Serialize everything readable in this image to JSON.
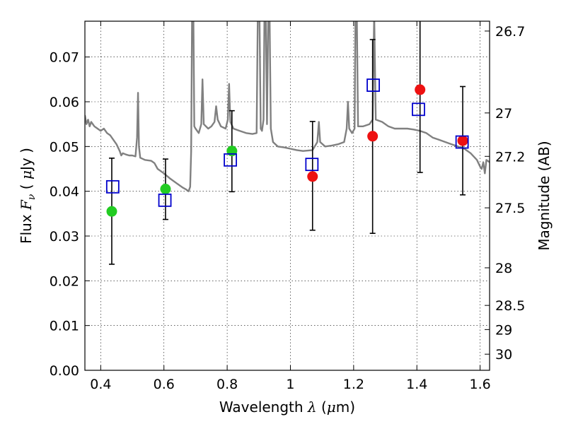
{
  "chart_data": {
    "type": "scatter",
    "xlabel": "Wavelength  λ (μm)",
    "ylabel": "Flux  Fν  ( μJy )",
    "y2label": "Magnitude (AB)",
    "xlim": [
      0.35,
      1.63
    ],
    "ylim": [
      0.0,
      0.078
    ],
    "grid": true,
    "x_ticks": [
      0.4,
      0.6,
      0.8,
      1.0,
      1.2,
      1.4,
      1.6
    ],
    "x_tick_labels": [
      "0.4",
      "0.6",
      "0.8",
      "1",
      "1.2",
      "1.4",
      "1.6"
    ],
    "y_ticks": [
      0.0,
      0.01,
      0.02,
      0.03,
      0.04,
      0.05,
      0.06,
      0.07
    ],
    "y_tick_labels": [
      "0.00",
      "0.01",
      "0.02",
      "0.03",
      "0.04",
      "0.05",
      "0.06",
      "0.07"
    ],
    "y2_ticks": [
      {
        "label": "26.7",
        "flux": 0.0758
      },
      {
        "label": "27",
        "flux": 0.0575
      },
      {
        "label": "27.2",
        "flux": 0.0478
      },
      {
        "label": "27.5",
        "flux": 0.0363
      },
      {
        "label": "28",
        "flux": 0.0229
      },
      {
        "label": "28.5",
        "flux": 0.0145
      },
      {
        "label": "29",
        "flux": 0.0091
      },
      {
        "label": "30",
        "flux": 0.0036
      }
    ],
    "series": [
      {
        "marker": "circle",
        "color": "#22cc22",
        "points": [
          {
            "x": 0.435,
            "y": 0.0355
          },
          {
            "x": 0.605,
            "y": 0.0405
          },
          {
            "x": 0.815,
            "y": 0.049
          }
        ]
      },
      {
        "marker": "circle",
        "color": "#ee1111",
        "points": [
          {
            "x": 1.07,
            "y": 0.0433
          },
          {
            "x": 1.26,
            "y": 0.0523
          },
          {
            "x": 1.41,
            "y": 0.0627
          },
          {
            "x": 1.545,
            "y": 0.0513
          }
        ]
      },
      {
        "marker": "square-open",
        "color": "#0000cc",
        "points": [
          {
            "x": 0.438,
            "y": 0.041
          },
          {
            "x": 0.603,
            "y": 0.038
          },
          {
            "x": 0.81,
            "y": 0.047
          },
          {
            "x": 1.068,
            "y": 0.046
          },
          {
            "x": 1.262,
            "y": 0.0637
          },
          {
            "x": 1.405,
            "y": 0.0583
          },
          {
            "x": 1.543,
            "y": 0.051
          }
        ]
      }
    ],
    "error_bars": [
      {
        "x": 0.435,
        "low": 0.0237,
        "high": 0.0474
      },
      {
        "x": 0.605,
        "low": 0.0337,
        "high": 0.0472
      },
      {
        "x": 0.815,
        "low": 0.0399,
        "high": 0.058
      },
      {
        "x": 1.07,
        "low": 0.0313,
        "high": 0.0556
      },
      {
        "x": 1.26,
        "low": 0.0306,
        "high": 0.0739
      },
      {
        "x": 1.41,
        "low": 0.0442,
        "high": 0.079
      },
      {
        "x": 1.545,
        "low": 0.0392,
        "high": 0.0634
      }
    ],
    "spectrum": {
      "color": "#808080",
      "points": [
        [
          0.35,
          0.057
        ],
        [
          0.355,
          0.055
        ],
        [
          0.36,
          0.056
        ],
        [
          0.365,
          0.0545
        ],
        [
          0.37,
          0.0555
        ],
        [
          0.38,
          0.0545
        ],
        [
          0.39,
          0.054
        ],
        [
          0.4,
          0.0535
        ],
        [
          0.41,
          0.054
        ],
        [
          0.42,
          0.053
        ],
        [
          0.43,
          0.0525
        ],
        [
          0.44,
          0.0515
        ],
        [
          0.45,
          0.0505
        ],
        [
          0.46,
          0.049
        ],
        [
          0.465,
          0.048
        ],
        [
          0.47,
          0.0485
        ],
        [
          0.48,
          0.0482
        ],
        [
          0.49,
          0.048
        ],
        [
          0.5,
          0.048
        ],
        [
          0.51,
          0.0478
        ],
        [
          0.515,
          0.052
        ],
        [
          0.518,
          0.062
        ],
        [
          0.521,
          0.05
        ],
        [
          0.525,
          0.0475
        ],
        [
          0.54,
          0.047
        ],
        [
          0.56,
          0.0468
        ],
        [
          0.57,
          0.0463
        ],
        [
          0.58,
          0.045
        ],
        [
          0.6,
          0.044
        ],
        [
          0.62,
          0.0428
        ],
        [
          0.64,
          0.0418
        ],
        [
          0.66,
          0.0408
        ],
        [
          0.67,
          0.0404
        ],
        [
          0.678,
          0.04
        ],
        [
          0.683,
          0.041
        ],
        [
          0.686,
          0.049
        ],
        [
          0.689,
          0.08
        ],
        [
          0.693,
          0.08
        ],
        [
          0.696,
          0.0545
        ],
        [
          0.7,
          0.054
        ],
        [
          0.71,
          0.053
        ],
        [
          0.718,
          0.055
        ],
        [
          0.722,
          0.065
        ],
        [
          0.726,
          0.055
        ],
        [
          0.74,
          0.054
        ],
        [
          0.75,
          0.0545
        ],
        [
          0.76,
          0.0555
        ],
        [
          0.765,
          0.059
        ],
        [
          0.77,
          0.056
        ],
        [
          0.78,
          0.0545
        ],
        [
          0.795,
          0.054
        ],
        [
          0.802,
          0.056
        ],
        [
          0.806,
          0.064
        ],
        [
          0.81,
          0.0555
        ],
        [
          0.82,
          0.054
        ],
        [
          0.84,
          0.0535
        ],
        [
          0.86,
          0.053
        ],
        [
          0.88,
          0.0528
        ],
        [
          0.893,
          0.053
        ],
        [
          0.897,
          0.08
        ],
        [
          0.902,
          0.08
        ],
        [
          0.906,
          0.054
        ],
        [
          0.91,
          0.0535
        ],
        [
          0.915,
          0.056
        ],
        [
          0.918,
          0.08
        ],
        [
          0.922,
          0.08
        ],
        [
          0.926,
          0.055
        ],
        [
          0.93,
          0.08
        ],
        [
          0.934,
          0.08
        ],
        [
          0.938,
          0.054
        ],
        [
          0.945,
          0.051
        ],
        [
          0.96,
          0.05
        ],
        [
          0.98,
          0.0498
        ],
        [
          1.0,
          0.0495
        ],
        [
          1.02,
          0.0492
        ],
        [
          1.04,
          0.049
        ],
        [
          1.07,
          0.0492
        ],
        [
          1.085,
          0.051
        ],
        [
          1.09,
          0.0555
        ],
        [
          1.094,
          0.051
        ],
        [
          1.11,
          0.05
        ],
        [
          1.13,
          0.0502
        ],
        [
          1.15,
          0.0505
        ],
        [
          1.17,
          0.051
        ],
        [
          1.178,
          0.054
        ],
        [
          1.182,
          0.06
        ],
        [
          1.186,
          0.054
        ],
        [
          1.195,
          0.053
        ],
        [
          1.203,
          0.054
        ],
        [
          1.206,
          0.08
        ],
        [
          1.21,
          0.08
        ],
        [
          1.214,
          0.0545
        ],
        [
          1.23,
          0.0545
        ],
        [
          1.25,
          0.055
        ],
        [
          1.26,
          0.056
        ],
        [
          1.265,
          0.08
        ],
        [
          1.27,
          0.056
        ],
        [
          1.29,
          0.0555
        ],
        [
          1.31,
          0.0545
        ],
        [
          1.33,
          0.054
        ],
        [
          1.35,
          0.054
        ],
        [
          1.37,
          0.054
        ],
        [
          1.39,
          0.0538
        ],
        [
          1.41,
          0.0535
        ],
        [
          1.43,
          0.053
        ],
        [
          1.45,
          0.052
        ],
        [
          1.47,
          0.0515
        ],
        [
          1.49,
          0.051
        ],
        [
          1.51,
          0.0505
        ],
        [
          1.53,
          0.05
        ],
        [
          1.55,
          0.0495
        ],
        [
          1.57,
          0.0485
        ],
        [
          1.59,
          0.047
        ],
        [
          1.6,
          0.0455
        ],
        [
          1.605,
          0.045
        ],
        [
          1.61,
          0.0465
        ],
        [
          1.615,
          0.044
        ],
        [
          1.62,
          0.047
        ],
        [
          1.63,
          0.0465
        ]
      ]
    }
  }
}
